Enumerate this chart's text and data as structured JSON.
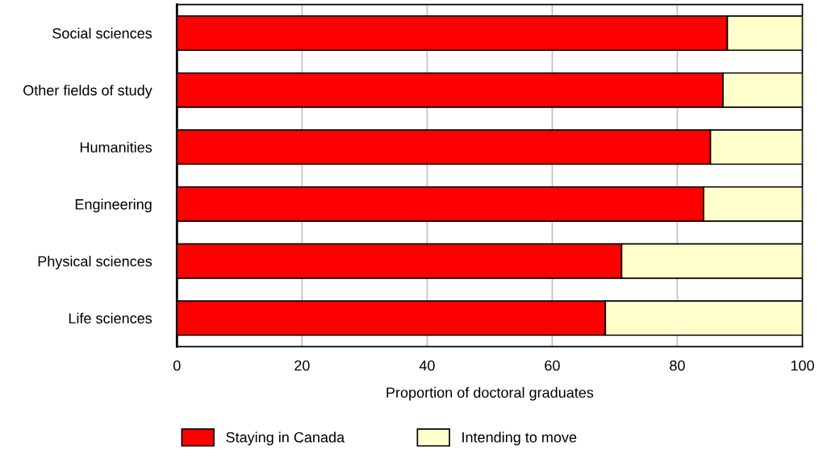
{
  "chart_data": {
    "type": "bar",
    "orientation": "horizontal",
    "stacked": true,
    "categories": [
      "Social sciences",
      "Other fields of study",
      "Humanities",
      "Engineering",
      "Physical sciences",
      "Life sciences"
    ],
    "series": [
      {
        "name": "Staying in Canada",
        "color": "#ff0000",
        "values": [
          88.0,
          87.3,
          85.3,
          84.2,
          71.1,
          68.5
        ]
      },
      {
        "name": "Intending to move",
        "color": "#ffffcc",
        "values": [
          12.0,
          12.7,
          14.7,
          15.8,
          28.9,
          31.5
        ]
      }
    ],
    "xlabel": "Proportion of doctoral graduates",
    "xlim": [
      0,
      100
    ],
    "xticks": [
      0,
      20,
      40,
      60,
      80,
      100
    ],
    "grid": "x",
    "legend": "bottom"
  }
}
